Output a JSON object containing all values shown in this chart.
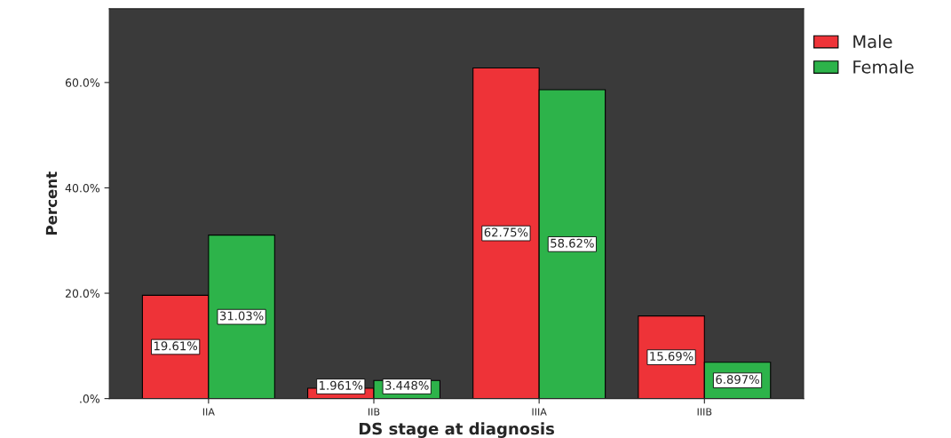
{
  "chart_data": {
    "type": "bar",
    "xlabel": "DS stage at diagnosis",
    "ylabel": "Percent",
    "categories": [
      "IIA",
      "IIB",
      "IIIA",
      "IIIB"
    ],
    "series": [
      {
        "name": "Male",
        "color": "#ee3338",
        "values": [
          19.61,
          1.961,
          62.75,
          15.69
        ],
        "value_labels": [
          "19.61%",
          "1.961%",
          "62.75%",
          "15.69%"
        ]
      },
      {
        "name": "Female",
        "color": "#2db34a",
        "values": [
          31.03,
          3.448,
          58.62,
          6.897
        ],
        "value_labels": [
          "31.03%",
          "3.448%",
          "58.62%",
          "6.897%"
        ]
      }
    ],
    "ylim": [
      0,
      74
    ],
    "yticks": [
      {
        "value": 0,
        "label": ".0%"
      },
      {
        "value": 20,
        "label": "20.0%"
      },
      {
        "value": 40,
        "label": "40.0%"
      },
      {
        "value": 60,
        "label": "60.0%"
      }
    ],
    "grid": false,
    "legend": "top right"
  }
}
